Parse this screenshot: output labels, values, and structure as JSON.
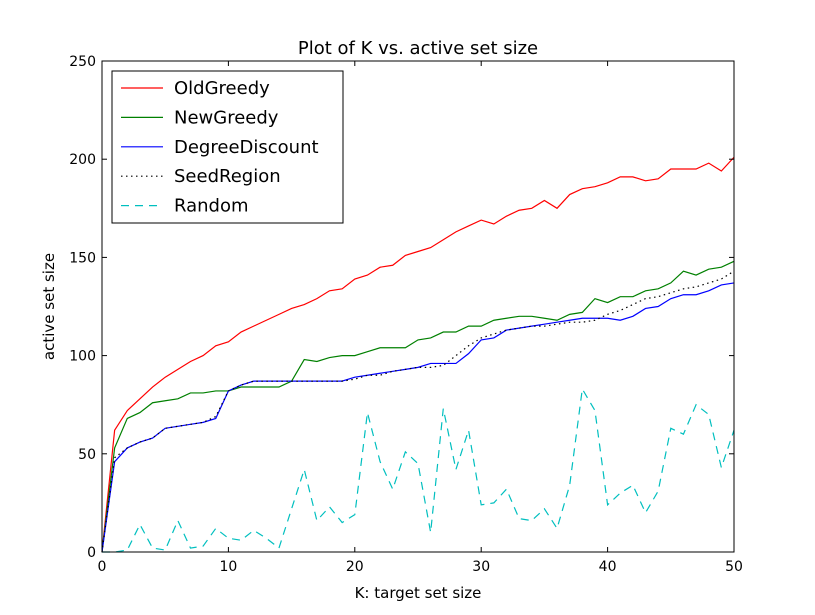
{
  "chart_data": {
    "type": "line",
    "title": "Plot of K vs. active set size",
    "xlabel": "K: target set size",
    "ylabel": "active set size",
    "xlim": [
      0,
      50
    ],
    "ylim": [
      0,
      250
    ],
    "xticks": [
      0,
      10,
      20,
      30,
      40,
      50
    ],
    "yticks": [
      0,
      50,
      100,
      150,
      200,
      250
    ],
    "grid": false,
    "legend_position": "top-left",
    "x": [
      0,
      1,
      2,
      3,
      4,
      5,
      6,
      7,
      8,
      9,
      10,
      11,
      12,
      13,
      14,
      15,
      16,
      17,
      18,
      19,
      20,
      21,
      22,
      23,
      24,
      25,
      26,
      27,
      28,
      29,
      30,
      31,
      32,
      33,
      34,
      35,
      36,
      37,
      38,
      39,
      40,
      41,
      42,
      43,
      44,
      45,
      46,
      47,
      48,
      49,
      50
    ],
    "series": [
      {
        "name": "OldGreedy",
        "color": "#ff0000",
        "style": "solid",
        "values": [
          0,
          62,
          72,
          78,
          84,
          89,
          93,
          97,
          100,
          105,
          107,
          112,
          115,
          118,
          121,
          124,
          126,
          129,
          133,
          134,
          139,
          141,
          145,
          146,
          151,
          153,
          155,
          159,
          163,
          166,
          169,
          167,
          171,
          174,
          175,
          179,
          175,
          182,
          185,
          186,
          188,
          191,
          191,
          189,
          190,
          195,
          195,
          195,
          198,
          194,
          201
        ]
      },
      {
        "name": "NewGreedy",
        "color": "#008000",
        "style": "solid",
        "values": [
          0,
          53,
          68,
          71,
          76,
          77,
          78,
          81,
          81,
          82,
          82,
          84,
          84,
          84,
          84,
          87,
          98,
          97,
          99,
          100,
          100,
          102,
          104,
          104,
          104,
          108,
          109,
          112,
          112,
          115,
          115,
          118,
          119,
          120,
          120,
          119,
          118,
          121,
          122,
          129,
          127,
          130,
          130,
          133,
          134,
          137,
          143,
          141,
          144,
          145,
          148
        ]
      },
      {
        "name": "DegreeDiscount",
        "color": "#0000ff",
        "style": "solid",
        "values": [
          0,
          46,
          53,
          56,
          58,
          63,
          64,
          65,
          66,
          68,
          82,
          85,
          87,
          87,
          87,
          87,
          87,
          87,
          87,
          87,
          89,
          90,
          91,
          92,
          93,
          94,
          96,
          96,
          96,
          101,
          108,
          109,
          113,
          114,
          115,
          116,
          117,
          118,
          119,
          119,
          119,
          118,
          120,
          124,
          125,
          129,
          131,
          131,
          133,
          136,
          137
        ]
      },
      {
        "name": "SeedRegion",
        "color": "#000000",
        "style": "dotted",
        "values": [
          0,
          48,
          53,
          56,
          58,
          63,
          64,
          65,
          66,
          69,
          82,
          85,
          87,
          87,
          87,
          87,
          87,
          87,
          87,
          87,
          88,
          90,
          90,
          92,
          93,
          94,
          94,
          95,
          100,
          105,
          109,
          111,
          113,
          114,
          115,
          115,
          116,
          117,
          117,
          118,
          121,
          123,
          126,
          129,
          130,
          132,
          134,
          135,
          137,
          139,
          143
        ]
      },
      {
        "name": "Random",
        "color": "#00bfbf",
        "style": "dashed",
        "values": [
          0,
          0,
          1,
          14,
          2,
          1,
          16,
          2,
          3,
          12,
          7,
          6,
          11,
          7,
          2,
          22,
          42,
          16,
          23,
          15,
          19,
          71,
          46,
          32,
          51,
          45,
          10,
          73,
          42,
          62,
          24,
          25,
          32,
          17,
          16,
          22,
          12,
          34,
          83,
          72,
          24,
          30,
          34,
          20,
          31,
          63,
          60,
          75,
          70,
          43,
          62
        ]
      }
    ]
  }
}
